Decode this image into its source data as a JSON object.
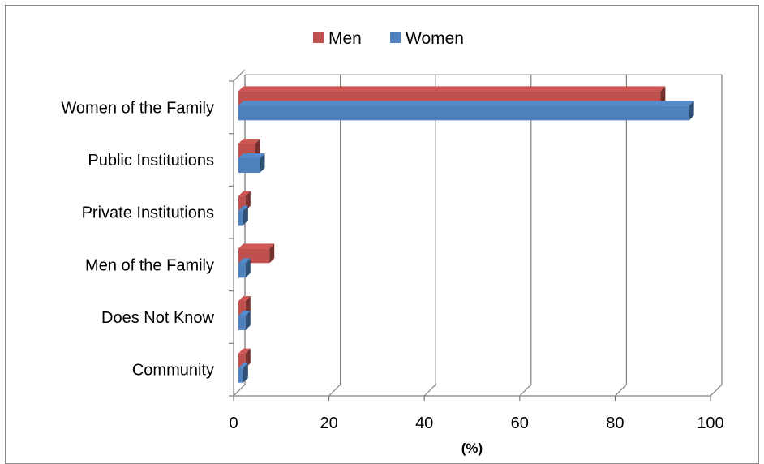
{
  "chart_data": {
    "type": "bar",
    "orientation": "horizontal",
    "categories": [
      "Women of the Family",
      "Public Institutions",
      "Private Institutions",
      "Men of the Family",
      "Does Not Know",
      "Community"
    ],
    "series": [
      {
        "name": "Men",
        "color": "#c0504d",
        "values": [
          88.5,
          3.5,
          1.5,
          6.5,
          1.5,
          1.5
        ]
      },
      {
        "name": "Women",
        "color": "#4f81bd",
        "values": [
          94.5,
          4.5,
          1.0,
          1.5,
          1.5,
          1.0
        ]
      }
    ],
    "xlabel": "(%)",
    "ylabel": "",
    "xlim": [
      0,
      100
    ],
    "xticks": [
      "0",
      "20",
      "40",
      "60",
      "80",
      "100"
    ],
    "grid": true,
    "legend_position": "top-center",
    "style": "3d-bar"
  }
}
